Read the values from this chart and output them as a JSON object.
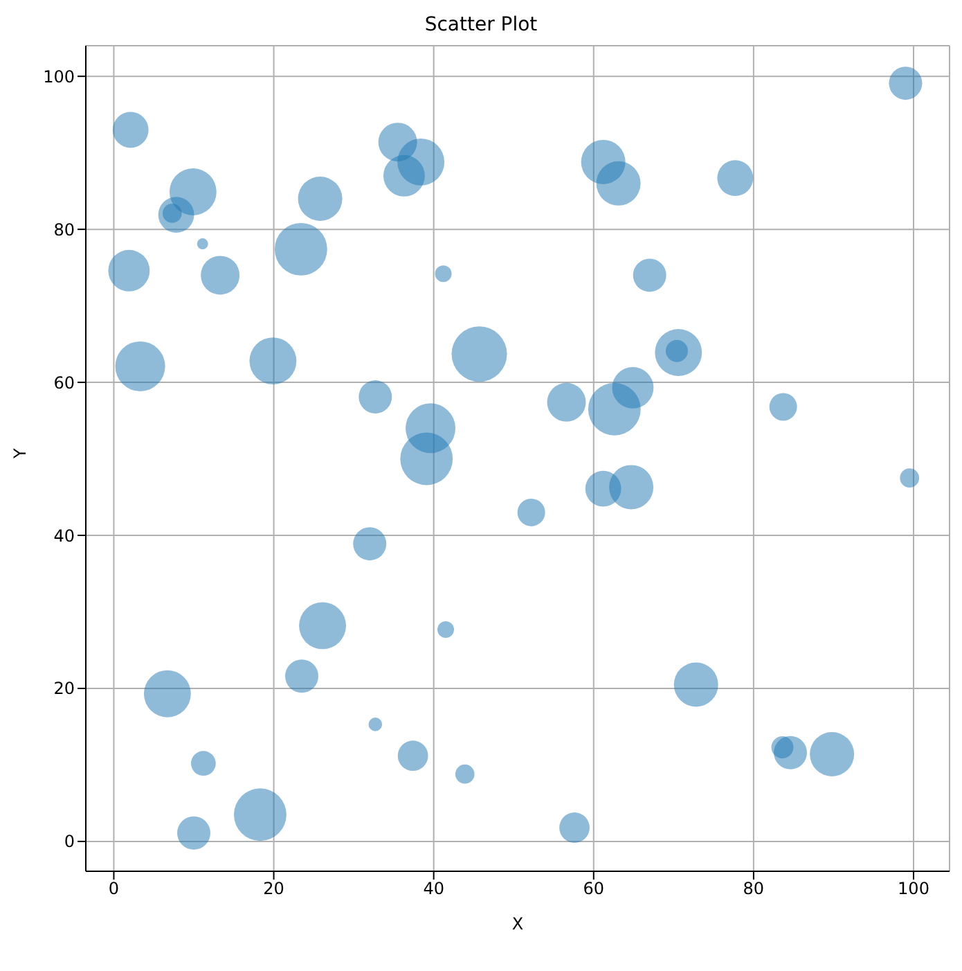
{
  "chart_data": {
    "type": "bubble",
    "title": "Scatter Plot",
    "xlabel": "X",
    "ylabel": "Y",
    "color": "#1f77b4",
    "grid": true,
    "marker": "circle",
    "xlim": [
      -3.5,
      104.5
    ],
    "ylim": [
      -3.9,
      104
    ],
    "xticks": [
      0,
      20,
      40,
      60,
      80,
      100
    ],
    "yticks": [
      0,
      20,
      40,
      60,
      80,
      100
    ],
    "x": [
      2.1,
      9.9,
      7.8,
      7.3,
      11.1,
      1.9,
      13.3,
      23.4,
      25.8,
      3.3,
      19.9,
      35.5,
      36.3,
      38.4,
      41.2,
      45.7,
      32.7,
      39.6,
      39.1,
      32.0,
      26.1,
      41.5,
      23.5,
      6.7,
      11.2,
      32.7,
      37.4,
      43.9,
      18.3,
      10.0,
      57.6,
      52.2,
      56.6,
      61.2,
      64.7,
      62.6,
      64.9,
      61.2,
      63.1,
      67.0,
      70.6,
      70.4,
      77.7,
      83.7,
      99.5,
      99.0,
      72.8,
      84.6,
      83.6,
      89.8
    ],
    "values": [
      93.0,
      84.9,
      81.9,
      82.1,
      78.1,
      74.6,
      74.0,
      77.4,
      84.0,
      62.1,
      62.8,
      91.4,
      87.0,
      88.8,
      74.2,
      63.7,
      58.1,
      54.0,
      50.0,
      38.9,
      28.2,
      27.7,
      21.6,
      19.3,
      10.2,
      15.3,
      11.2,
      8.8,
      3.5,
      1.1,
      1.8,
      43.0,
      57.4,
      46.1,
      46.3,
      56.5,
      59.3,
      88.8,
      86.0,
      74.0,
      63.9,
      64.1,
      86.7,
      56.8,
      47.5,
      99.1,
      20.5,
      11.6,
      12.3,
      11.4
    ],
    "sizes": [
      0.42,
      0.72,
      0.42,
      0.12,
      0.04,
      0.56,
      0.49,
      0.9,
      0.64,
      0.81,
      0.72,
      0.49,
      0.56,
      0.72,
      0.09,
      1,
      0.36,
      0.81,
      0.9,
      0.36,
      0.72,
      0.09,
      0.36,
      0.72,
      0.2,
      0.06,
      0.3,
      0.12,
      0.9,
      0.36,
      0.3,
      0.25,
      0.49,
      0.42,
      0.64,
      0.9,
      0.56,
      0.64,
      0.64,
      0.36,
      0.72,
      0.16,
      0.42,
      0.25,
      0.12,
      0.36,
      0.64,
      0.36,
      0.16,
      0.64
    ]
  }
}
